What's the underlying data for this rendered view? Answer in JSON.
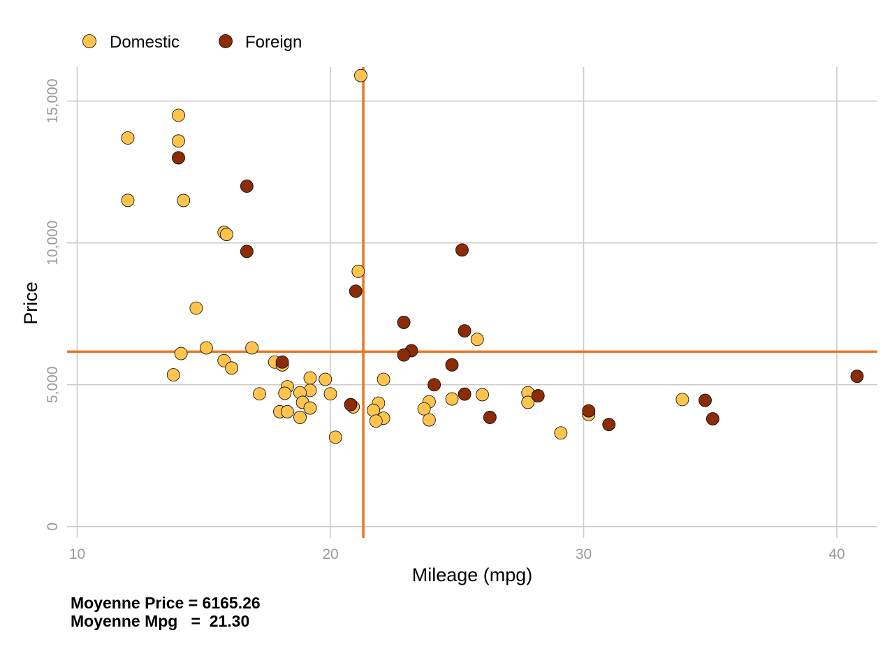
{
  "chart_data": {
    "type": "scatter",
    "title": "",
    "xlabel": "Mileage (mpg)",
    "ylabel": "Price",
    "xlim": [
      9.6,
      41.6
    ],
    "ylim": [
      -400,
      16200
    ],
    "xticks": [
      10,
      20,
      30,
      40
    ],
    "xtick_labels": [
      "10",
      "20",
      "30",
      "40"
    ],
    "yticks": [
      0,
      5000,
      10000,
      15000
    ],
    "ytick_labels": [
      "0",
      "5,000",
      "10,000",
      "15,000"
    ],
    "grid": true,
    "legend_position": "top-left",
    "mean_lines": {
      "x": 21.3,
      "y": 6165.26,
      "color": "#E87722"
    },
    "annotations": [
      "Moyenne Price = 6165.26",
      "Moyenne Mpg   =  21.30"
    ],
    "series": [
      {
        "name": "Domestic",
        "color": "#FFC44D",
        "points": [
          [
            21.2,
            15900
          ],
          [
            14,
            14500
          ],
          [
            14,
            13594
          ],
          [
            12,
            13700
          ],
          [
            12,
            11500
          ],
          [
            14.2,
            11497
          ],
          [
            15.8,
            10371
          ],
          [
            15.9,
            10300
          ],
          [
            21.1,
            9000
          ],
          [
            14.7,
            7700
          ],
          [
            25.8,
            6600
          ],
          [
            15.1,
            6300
          ],
          [
            16.9,
            6300
          ],
          [
            14.1,
            6100
          ],
          [
            15.8,
            5850
          ],
          [
            17.8,
            5800
          ],
          [
            18.1,
            5700
          ],
          [
            16.1,
            5590
          ],
          [
            13.8,
            5350
          ],
          [
            19.2,
            5240
          ],
          [
            19.8,
            5190
          ],
          [
            22.1,
            5190
          ],
          [
            18.3,
            4930
          ],
          [
            19.2,
            4800
          ],
          [
            18.8,
            4720
          ],
          [
            18.2,
            4700
          ],
          [
            27.8,
            4720
          ],
          [
            17.2,
            4680
          ],
          [
            20,
            4680
          ],
          [
            26,
            4650
          ],
          [
            24.8,
            4500
          ],
          [
            33.9,
            4480
          ],
          [
            23.9,
            4400
          ],
          [
            18.9,
            4380
          ],
          [
            27.8,
            4380
          ],
          [
            21.9,
            4350
          ],
          [
            20.9,
            4220
          ],
          [
            19.2,
            4180
          ],
          [
            23.7,
            4150
          ],
          [
            21.7,
            4100
          ],
          [
            18,
            4050
          ],
          [
            18.3,
            4050
          ],
          [
            30.2,
            3950
          ],
          [
            18.8,
            3850
          ],
          [
            22.1,
            3820
          ],
          [
            23.9,
            3760
          ],
          [
            21.8,
            3720
          ],
          [
            29.1,
            3300
          ],
          [
            20.2,
            3150
          ]
        ]
      },
      {
        "name": "Foreign",
        "color": "#8B2C05",
        "points": [
          [
            14,
            13000
          ],
          [
            16.7,
            12000
          ],
          [
            25.2,
            9750
          ],
          [
            16.7,
            9700
          ],
          [
            21,
            8300
          ],
          [
            22.9,
            7200
          ],
          [
            25.3,
            6900
          ],
          [
            23.2,
            6200
          ],
          [
            22.9,
            6050
          ],
          [
            18.1,
            5800
          ],
          [
            24.8,
            5700
          ],
          [
            40.8,
            5300
          ],
          [
            24.1,
            5000
          ],
          [
            25.3,
            4670
          ],
          [
            28.2,
            4610
          ],
          [
            34.8,
            4450
          ],
          [
            20.8,
            4300
          ],
          [
            30.2,
            4080
          ],
          [
            26.3,
            3850
          ],
          [
            35.1,
            3800
          ],
          [
            31,
            3600
          ]
        ]
      }
    ]
  }
}
